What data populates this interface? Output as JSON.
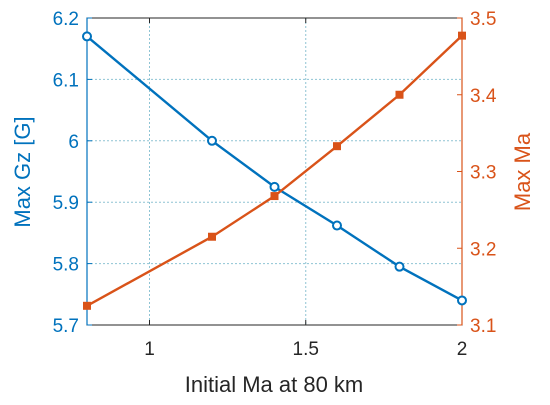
{
  "chart_data": {
    "type": "line",
    "title": "",
    "xlabel": "Initial Ma at 80 km",
    "ylabel_left": "Max Gz [G]",
    "ylabel_right": "Max Ma",
    "xlim": [
      0.8,
      2.0
    ],
    "ylim_left": [
      5.7,
      6.2
    ],
    "ylim_right": [
      3.1,
      3.5
    ],
    "x_ticks": [
      1,
      1.5,
      2
    ],
    "x_tick_labels": [
      "1",
      "1.5",
      "2"
    ],
    "y_left_ticks": [
      5.7,
      5.8,
      5.9,
      6.0,
      6.1,
      6.2
    ],
    "y_left_tick_labels": [
      "5.7",
      "5.8",
      "5.9",
      "6",
      "6.1",
      "6.2"
    ],
    "y_right_ticks": [
      3.1,
      3.2,
      3.3,
      3.4,
      3.5
    ],
    "y_right_tick_labels": [
      "3.1",
      "3.2",
      "3.3",
      "3.4",
      "3.5"
    ],
    "grid": true,
    "colors": {
      "left": "#0072BD",
      "right": "#D95319",
      "grid": "#8fc4d4",
      "axis": "#262626"
    },
    "series": [
      {
        "axis": "left",
        "marker": "circle",
        "x": [
          0.8,
          1.2,
          1.4,
          1.6,
          1.8,
          2.0
        ],
        "y": [
          6.17,
          6.0,
          5.925,
          5.862,
          5.795,
          5.74
        ]
      },
      {
        "axis": "right",
        "marker": "square",
        "x": [
          0.8,
          1.2,
          1.4,
          1.6,
          1.8,
          2.0
        ],
        "y": [
          3.125,
          3.215,
          3.268,
          3.333,
          3.4,
          3.477
        ]
      }
    ]
  }
}
